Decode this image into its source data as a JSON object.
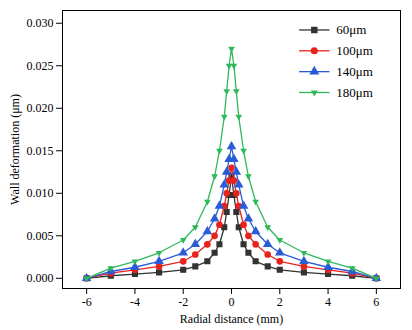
{
  "chart_data": {
    "type": "line",
    "x_label": "Radial distance (mm)",
    "y_label": "Wall deformation (μm)",
    "x": [
      -6,
      -5,
      -4,
      -3,
      -2,
      -1.5,
      -1,
      -0.7,
      -0.5,
      -0.3,
      -0.2,
      -0.1,
      0,
      0.1,
      0.2,
      0.3,
      0.5,
      0.7,
      1,
      1.5,
      2,
      3,
      4,
      5,
      6
    ],
    "series": [
      {
        "name": "60μm",
        "color": "#333333",
        "marker": "square",
        "values": [
          0,
          0.0003,
          0.0005,
          0.0007,
          0.001,
          0.0014,
          0.002,
          0.003,
          0.004,
          0.006,
          0.0078,
          0.0098,
          0.012,
          0.0098,
          0.0078,
          0.006,
          0.004,
          0.003,
          0.002,
          0.0014,
          0.001,
          0.0007,
          0.0005,
          0.0003,
          0
        ]
      },
      {
        "name": "100μm",
        "color": "#e8231c",
        "marker": "circle",
        "values": [
          0,
          0.0006,
          0.001,
          0.0014,
          0.002,
          0.0028,
          0.004,
          0.005,
          0.0063,
          0.0085,
          0.01,
          0.0115,
          0.013,
          0.0115,
          0.01,
          0.0085,
          0.0063,
          0.005,
          0.004,
          0.0028,
          0.002,
          0.0014,
          0.001,
          0.0006,
          0
        ]
      },
      {
        "name": "140μm",
        "color": "#2a5cd6",
        "marker": "triangle",
        "values": [
          0,
          0.0008,
          0.0013,
          0.002,
          0.003,
          0.004,
          0.0055,
          0.007,
          0.0085,
          0.011,
          0.0125,
          0.014,
          0.0155,
          0.014,
          0.0125,
          0.011,
          0.0085,
          0.007,
          0.0055,
          0.004,
          0.003,
          0.002,
          0.0013,
          0.0008,
          0
        ]
      },
      {
        "name": "180μm",
        "color": "#2fb95a",
        "marker": "triangle-down",
        "values": [
          0,
          0.0012,
          0.002,
          0.003,
          0.0045,
          0.006,
          0.009,
          0.012,
          0.015,
          0.019,
          0.022,
          0.025,
          0.027,
          0.025,
          0.022,
          0.019,
          0.015,
          0.012,
          0.009,
          0.006,
          0.0045,
          0.003,
          0.002,
          0.0012,
          0
        ]
      }
    ],
    "xlim": [
      -7,
      7
    ],
    "xticks": [
      -6,
      -4,
      -2,
      0,
      2,
      4,
      6
    ],
    "ylim": [
      -0.0012,
      0.0315
    ],
    "yticks": [
      {
        "value": 0,
        "label": "0.000"
      },
      0.005,
      {
        "value": 0.01,
        "label": "0.010"
      },
      0.015,
      {
        "value": 0.02,
        "label": "0.020"
      },
      0.025,
      {
        "value": 0.03,
        "label": "0.030"
      }
    ],
    "grid": false,
    "legend": "top-right"
  }
}
